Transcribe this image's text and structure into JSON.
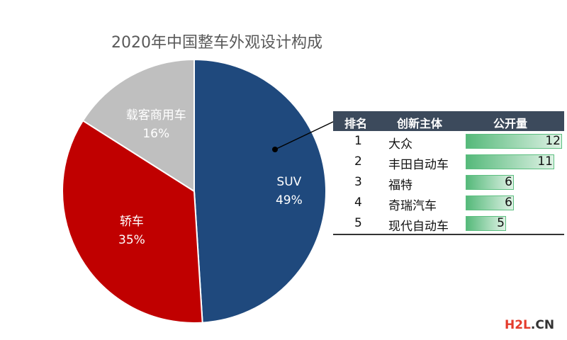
{
  "chart_data": [
    {
      "type": "pie",
      "title": "2020年中国整车外观设计构成",
      "slices": [
        {
          "label": "SUV",
          "value": 49,
          "display": "49%",
          "color": "#1f497d"
        },
        {
          "label": "轿车",
          "value": 35,
          "display": "35%",
          "color": "#c00000"
        },
        {
          "label": "载客商用车",
          "value": 16,
          "display": "16%",
          "color": "#bfbfbf"
        }
      ]
    },
    {
      "type": "table",
      "columns": [
        "排名",
        "创新主体",
        "公开量"
      ],
      "rows": [
        {
          "rank": "1",
          "name": "大众",
          "value": 12
        },
        {
          "rank": "2",
          "name": "丰田自动车",
          "value": 11
        },
        {
          "rank": "3",
          "name": "福特",
          "value": 6
        },
        {
          "rank": "4",
          "name": "奇瑞汽车",
          "value": 6
        },
        {
          "rank": "5",
          "name": "现代自动车",
          "value": 5
        }
      ]
    }
  ],
  "watermark": {
    "part1": "H2L",
    "part2": ".CN"
  }
}
